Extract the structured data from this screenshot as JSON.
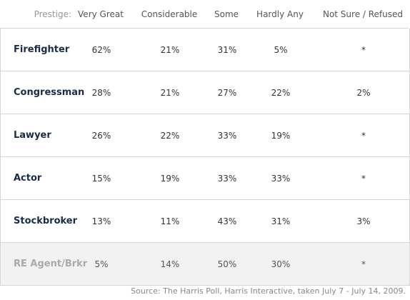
{
  "table": {
    "header": [
      "Prestige:",
      "Very Great",
      "Considerable",
      "Some",
      "Hardly Any",
      "Not Sure / Refused"
    ],
    "rows": [
      [
        "Firefighter",
        "62%",
        "21%",
        "31%",
        "5%",
        "*"
      ],
      [
        "Congressman",
        "28%",
        "21%",
        "27%",
        "22%",
        "2%"
      ],
      [
        "Lawyer",
        "26%",
        "22%",
        "33%",
        "19%",
        "*"
      ],
      [
        "Actor",
        "15%",
        "19%",
        "33%",
        "33%",
        "*"
      ],
      [
        "Stockbroker",
        "13%",
        "11%",
        "43%",
        "31%",
        "3%"
      ],
      [
        "RE Agent/Brkr",
        "5%",
        "14%",
        "50%",
        "30%",
        "*"
      ]
    ]
  },
  "source": "Source: The Harris Poll, Harris Interactive, taken July 7 - July 14, 2009."
}
